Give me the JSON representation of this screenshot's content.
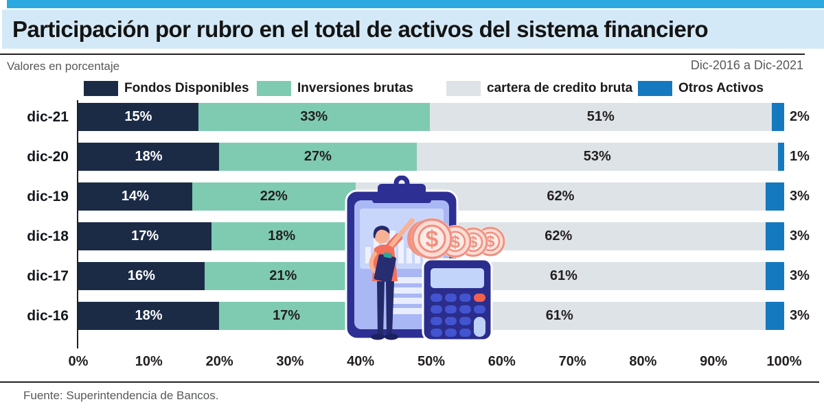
{
  "header": {
    "title": "Participación por rubro en el total de activos del sistema financiero",
    "units_note": "Valores en porcentaje",
    "period": "Dic-2016 a Dic-2021"
  },
  "footer": {
    "source": "Fuente: Superintendencia de Bancos."
  },
  "icons": {
    "illustration": "finance-clipboard-coins-calculator-person-illustration"
  },
  "colors": {
    "top_accent": "#29a9e0",
    "title_band": "#d4e9f7",
    "rule": "#231f20",
    "muted_text": "#57585a"
  },
  "chart_data": {
    "type": "bar",
    "orientation": "horizontal",
    "stacked": true,
    "grid": false,
    "legend_position": "top",
    "title": "Participación por rubro en el total de activos del sistema financiero",
    "xlabel": "",
    "ylabel": "",
    "xlim": [
      0,
      100
    ],
    "value_suffix": "%",
    "categories": [
      "dic-21",
      "dic-20",
      "dic-19",
      "dic-18",
      "dic-17",
      "dic-16"
    ],
    "series": [
      {
        "name": "Fondos Disponibles",
        "color": "#1b2b46",
        "values": [
          15,
          18,
          14,
          17,
          16,
          18
        ]
      },
      {
        "name": "Inversiones brutas",
        "color": "#7fcbb1",
        "values": [
          33,
          27,
          22,
          18,
          21,
          17
        ]
      },
      {
        "name": "cartera de credito bruta",
        "color": "#dde3e6",
        "values": [
          51,
          53,
          62,
          62,
          61,
          61
        ]
      },
      {
        "name": "Otros Activos",
        "color": "#1579c0",
        "values": [
          2,
          1,
          3,
          3,
          3,
          3
        ]
      }
    ],
    "x_ticks": [
      "0%",
      "10%",
      "20%",
      "30%",
      "40%",
      "50%",
      "60%",
      "70%",
      "80%",
      "90%",
      "100%"
    ]
  }
}
